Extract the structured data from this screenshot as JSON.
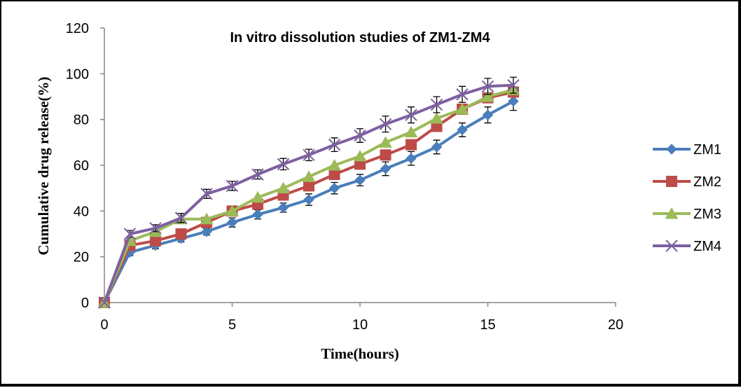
{
  "chart_data": {
    "type": "line",
    "title": "In vitro dissolution studies of ZM1-ZM4",
    "xlabel": "Time(hours)",
    "ylabel": "Cumulative drug release(%)",
    "xlim": [
      0,
      20
    ],
    "ylim": [
      0,
      120
    ],
    "xticks": [
      0,
      5,
      10,
      15,
      20
    ],
    "yticks": [
      0,
      20,
      40,
      60,
      80,
      100,
      120
    ],
    "grid": false,
    "legend_position": "right",
    "error_bars": true,
    "x": [
      0,
      1,
      2,
      3,
      4,
      5,
      6,
      7,
      8,
      9,
      10,
      11,
      12,
      13,
      14,
      15,
      16
    ],
    "series": [
      {
        "name": "ZM1",
        "color": "#4a7ebb",
        "marker": "diamond",
        "values": [
          0,
          22,
          25,
          28,
          31,
          35,
          38.5,
          41.5,
          45,
          50,
          53.5,
          58.5,
          63,
          68,
          75.5,
          82,
          88
        ],
        "errors": [
          0,
          1.5,
          1.5,
          1.5,
          1.5,
          2,
          2,
          2,
          2.5,
          2.5,
          2.5,
          3,
          3,
          3,
          3,
          3.5,
          4
        ]
      },
      {
        "name": "ZM2",
        "color": "#be4b48",
        "marker": "square",
        "values": [
          0,
          25,
          27,
          30,
          35,
          40,
          43,
          47,
          51,
          56,
          60.5,
          64.5,
          69,
          77,
          84.5,
          89.5,
          92
        ]
      },
      {
        "name": "ZM3",
        "color": "#9bbb59",
        "marker": "triangle",
        "values": [
          0,
          27,
          31,
          36.5,
          36.5,
          40,
          46,
          50,
          55,
          60,
          64,
          70,
          74.5,
          80.5,
          84.5,
          90,
          93
        ]
      },
      {
        "name": "ZM4",
        "color": "#7d60a0",
        "marker": "x",
        "values": [
          0,
          30,
          32.5,
          37,
          47.5,
          51,
          56,
          60.5,
          64.5,
          69,
          73,
          78,
          82,
          86.5,
          91,
          94.5,
          95
        ],
        "errors": [
          0,
          1.5,
          1.5,
          2,
          2,
          2,
          2,
          2.5,
          2.5,
          3,
          3,
          3.5,
          3.5,
          3.5,
          3.5,
          3.5,
          3.5
        ]
      }
    ]
  }
}
